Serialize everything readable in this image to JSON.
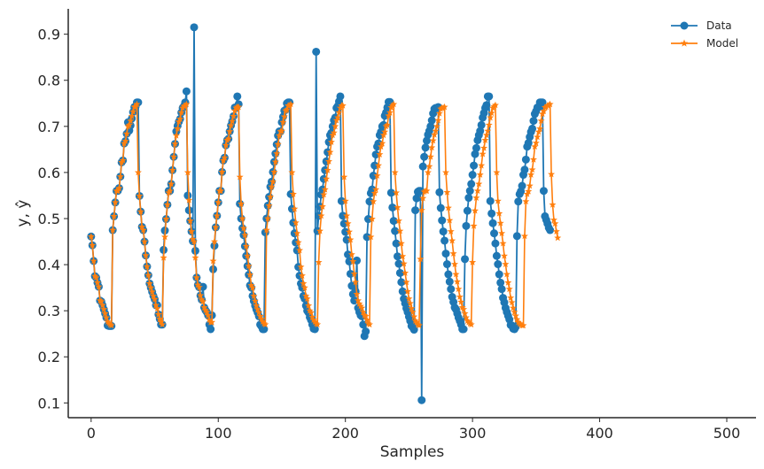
{
  "chart_data": {
    "type": "line",
    "xlabel": "Samples",
    "ylabel": "y, ŷ",
    "xlim": [
      -18,
      523
    ],
    "ylim": [
      0.068,
      0.955
    ],
    "xticks": [
      0,
      100,
      200,
      300,
      400,
      500
    ],
    "yticks": [
      0.1,
      0.2,
      0.3,
      0.4,
      0.5,
      0.6,
      0.7,
      0.8,
      0.9
    ],
    "grid": false,
    "legend_position": "top-right",
    "colors": {
      "data": "#1f77b4",
      "model": "#ff7f0e",
      "axis": "#262626"
    },
    "series": [
      {
        "name": "Data",
        "marker": "circle",
        "color": "#1f77b4",
        "values": [
          0.461,
          0.442,
          0.408,
          0.375,
          0.372,
          0.361,
          0.352,
          0.322,
          0.32,
          0.312,
          0.303,
          0.294,
          0.285,
          0.268,
          0.267,
          0.267,
          0.267,
          0.475,
          0.505,
          0.535,
          0.56,
          0.56,
          0.566,
          0.591,
          0.622,
          0.626,
          0.663,
          0.668,
          0.684,
          0.709,
          0.691,
          0.702,
          0.717,
          0.731,
          0.742,
          0.743,
          0.752,
          0.752,
          0.549,
          0.515,
          0.482,
          0.475,
          0.45,
          0.42,
          0.396,
          0.377,
          0.359,
          0.35,
          0.341,
          0.332,
          0.325,
          0.312,
          0.312,
          0.292,
          0.282,
          0.27,
          0.27,
          0.432,
          0.474,
          0.499,
          0.53,
          0.56,
          0.56,
          0.575,
          0.605,
          0.634,
          0.662,
          0.689,
          0.701,
          0.71,
          0.716,
          0.73,
          0.74,
          0.744,
          0.752,
          0.776,
          0.55,
          0.518,
          0.495,
          0.472,
          0.451,
          0.915,
          0.43,
          0.372,
          0.356,
          0.351,
          0.333,
          0.324,
          0.352,
          0.307,
          0.301,
          0.297,
          0.29,
          0.27,
          0.26,
          0.29,
          0.39,
          0.441,
          0.481,
          0.506,
          0.535,
          0.56,
          0.56,
          0.601,
          0.626,
          0.632,
          0.659,
          0.67,
          0.673,
          0.689,
          0.702,
          0.711,
          0.722,
          0.741,
          0.74,
          0.765,
          0.748,
          0.532,
          0.5,
          0.479,
          0.464,
          0.44,
          0.419,
          0.397,
          0.378,
          0.355,
          0.35,
          0.332,
          0.321,
          0.311,
          0.303,
          0.296,
          0.288,
          0.27,
          0.266,
          0.26,
          0.26,
          0.47,
          0.5,
          0.528,
          0.547,
          0.569,
          0.58,
          0.601,
          0.623,
          0.641,
          0.661,
          0.68,
          0.689,
          0.689,
          0.709,
          0.721,
          0.734,
          0.736,
          0.75,
          0.752,
          0.752,
          0.553,
          0.521,
          0.491,
          0.468,
          0.448,
          0.431,
          0.395,
          0.376,
          0.359,
          0.35,
          0.332,
          0.326,
          0.311,
          0.3,
          0.296,
          0.286,
          0.28,
          0.27,
          0.261,
          0.26,
          0.862,
          0.473,
          0.506,
          0.526,
          0.552,
          0.563,
          0.586,
          0.605,
          0.624,
          0.644,
          0.666,
          0.681,
          0.686,
          0.7,
          0.713,
          0.719,
          0.74,
          0.744,
          0.754,
          0.765,
          0.538,
          0.506,
          0.489,
          0.471,
          0.454,
          0.422,
          0.407,
          0.38,
          0.354,
          0.336,
          0.322,
          0.342,
          0.409,
          0.306,
          0.297,
          0.29,
          0.288,
          0.27,
          0.245,
          0.255,
          0.46,
          0.499,
          0.537,
          0.555,
          0.563,
          0.593,
          0.615,
          0.639,
          0.656,
          0.663,
          0.681,
          0.688,
          0.7,
          0.703,
          0.723,
          0.73,
          0.741,
          0.753,
          0.753,
          0.556,
          0.524,
          0.495,
          0.473,
          0.446,
          0.418,
          0.402,
          0.382,
          0.362,
          0.342,
          0.326,
          0.316,
          0.305,
          0.297,
          0.287,
          0.278,
          0.267,
          0.264,
          0.259,
          0.518,
          0.544,
          0.558,
          0.56,
          0.56,
          0.106,
          0.613,
          0.634,
          0.654,
          0.669,
          0.682,
          0.69,
          0.7,
          0.713,
          0.728,
          0.738,
          0.74,
          0.74,
          0.742,
          0.557,
          0.523,
          0.496,
          0.472,
          0.452,
          0.424,
          0.401,
          0.379,
          0.363,
          0.347,
          0.33,
          0.319,
          0.307,
          0.303,
          0.294,
          0.285,
          0.278,
          0.27,
          0.26,
          0.26,
          0.412,
          0.484,
          0.517,
          0.545,
          0.56,
          0.575,
          0.595,
          0.615,
          0.64,
          0.653,
          0.67,
          0.681,
          0.69,
          0.703,
          0.719,
          0.729,
          0.74,
          0.746,
          0.765,
          0.765,
          0.538,
          0.511,
          0.49,
          0.468,
          0.446,
          0.419,
          0.401,
          0.379,
          0.361,
          0.347,
          0.328,
          0.318,
          0.306,
          0.297,
          0.289,
          0.281,
          0.269,
          0.268,
          0.261,
          0.26,
          0.265,
          0.462,
          0.537,
          0.553,
          0.559,
          0.571,
          0.595,
          0.606,
          0.628,
          0.656,
          0.664,
          0.677,
          0.688,
          0.695,
          0.712,
          0.727,
          0.733,
          0.741,
          0.742,
          0.752,
          0.752,
          0.752,
          0.56,
          0.505,
          0.497,
          0.489,
          0.48,
          0.475
        ]
      },
      {
        "name": "Model",
        "marker": "star",
        "color": "#ff7f0e",
        "values": [
          0.461,
          0.442,
          0.408,
          0.375,
          0.372,
          0.361,
          0.352,
          0.322,
          0.32,
          0.312,
          0.303,
          0.294,
          0.285,
          0.276,
          0.273,
          0.27,
          0.268,
          0.475,
          0.505,
          0.535,
          0.56,
          0.56,
          0.566,
          0.591,
          0.622,
          0.626,
          0.663,
          0.668,
          0.684,
          0.7,
          0.703,
          0.712,
          0.722,
          0.732,
          0.742,
          0.743,
          0.748,
          0.6,
          0.549,
          0.515,
          0.482,
          0.475,
          0.45,
          0.42,
          0.396,
          0.377,
          0.359,
          0.35,
          0.341,
          0.332,
          0.325,
          0.312,
          0.305,
          0.292,
          0.282,
          0.275,
          0.27,
          0.415,
          0.46,
          0.499,
          0.53,
          0.556,
          0.56,
          0.575,
          0.605,
          0.634,
          0.662,
          0.68,
          0.695,
          0.71,
          0.716,
          0.73,
          0.74,
          0.744,
          0.745,
          0.748,
          0.6,
          0.54,
          0.495,
          0.472,
          0.455,
          0.45,
          0.415,
          0.372,
          0.356,
          0.351,
          0.333,
          0.324,
          0.32,
          0.307,
          0.301,
          0.297,
          0.29,
          0.28,
          0.275,
          0.275,
          0.408,
          0.45,
          0.481,
          0.506,
          0.535,
          0.56,
          0.56,
          0.601,
          0.626,
          0.632,
          0.659,
          0.67,
          0.673,
          0.689,
          0.702,
          0.711,
          0.722,
          0.734,
          0.74,
          0.742,
          0.742,
          0.59,
          0.532,
          0.5,
          0.479,
          0.464,
          0.44,
          0.419,
          0.397,
          0.378,
          0.355,
          0.35,
          0.332,
          0.321,
          0.311,
          0.303,
          0.296,
          0.288,
          0.282,
          0.276,
          0.272,
          0.27,
          0.475,
          0.5,
          0.528,
          0.547,
          0.569,
          0.58,
          0.601,
          0.623,
          0.641,
          0.661,
          0.68,
          0.689,
          0.69,
          0.709,
          0.721,
          0.734,
          0.736,
          0.745,
          0.745,
          0.748,
          0.6,
          0.553,
          0.521,
          0.491,
          0.468,
          0.448,
          0.431,
          0.395,
          0.376,
          0.359,
          0.35,
          0.332,
          0.326,
          0.311,
          0.3,
          0.296,
          0.286,
          0.28,
          0.276,
          0.272,
          0.27,
          0.405,
          0.473,
          0.506,
          0.526,
          0.552,
          0.563,
          0.586,
          0.605,
          0.624,
          0.644,
          0.666,
          0.681,
          0.686,
          0.7,
          0.713,
          0.719,
          0.73,
          0.74,
          0.745,
          0.745,
          0.59,
          0.538,
          0.506,
          0.489,
          0.471,
          0.454,
          0.422,
          0.407,
          0.38,
          0.362,
          0.336,
          0.322,
          0.315,
          0.31,
          0.306,
          0.297,
          0.29,
          0.288,
          0.28,
          0.272,
          0.27,
          0.46,
          0.499,
          0.537,
          0.555,
          0.563,
          0.593,
          0.615,
          0.639,
          0.656,
          0.663,
          0.681,
          0.688,
          0.7,
          0.703,
          0.723,
          0.73,
          0.741,
          0.745,
          0.748,
          0.6,
          0.556,
          0.524,
          0.495,
          0.473,
          0.446,
          0.418,
          0.402,
          0.382,
          0.362,
          0.342,
          0.326,
          0.316,
          0.305,
          0.297,
          0.287,
          0.278,
          0.275,
          0.27,
          0.268,
          0.412,
          0.518,
          0.544,
          0.558,
          0.56,
          0.56,
          0.6,
          0.613,
          0.634,
          0.654,
          0.669,
          0.682,
          0.69,
          0.7,
          0.713,
          0.728,
          0.738,
          0.74,
          0.74,
          0.742,
          0.6,
          0.557,
          0.523,
          0.496,
          0.472,
          0.452,
          0.424,
          0.401,
          0.379,
          0.363,
          0.347,
          0.33,
          0.319,
          0.307,
          0.303,
          0.294,
          0.285,
          0.278,
          0.275,
          0.272,
          0.27,
          0.405,
          0.484,
          0.517,
          0.545,
          0.56,
          0.575,
          0.595,
          0.615,
          0.64,
          0.653,
          0.67,
          0.681,
          0.69,
          0.703,
          0.719,
          0.729,
          0.74,
          0.743,
          0.746,
          0.6,
          0.538,
          0.511,
          0.49,
          0.468,
          0.446,
          0.419,
          0.401,
          0.379,
          0.361,
          0.347,
          0.328,
          0.318,
          0.306,
          0.297,
          0.289,
          0.281,
          0.275,
          0.272,
          0.27,
          0.268,
          0.268,
          0.462,
          0.537,
          0.553,
          0.559,
          0.571,
          0.595,
          0.606,
          0.628,
          0.656,
          0.664,
          0.677,
          0.688,
          0.695,
          0.712,
          0.727,
          0.733,
          0.741,
          0.742,
          0.745,
          0.746,
          0.748,
          0.596,
          0.53,
          0.497,
          0.489,
          0.472,
          0.458
        ]
      }
    ]
  }
}
